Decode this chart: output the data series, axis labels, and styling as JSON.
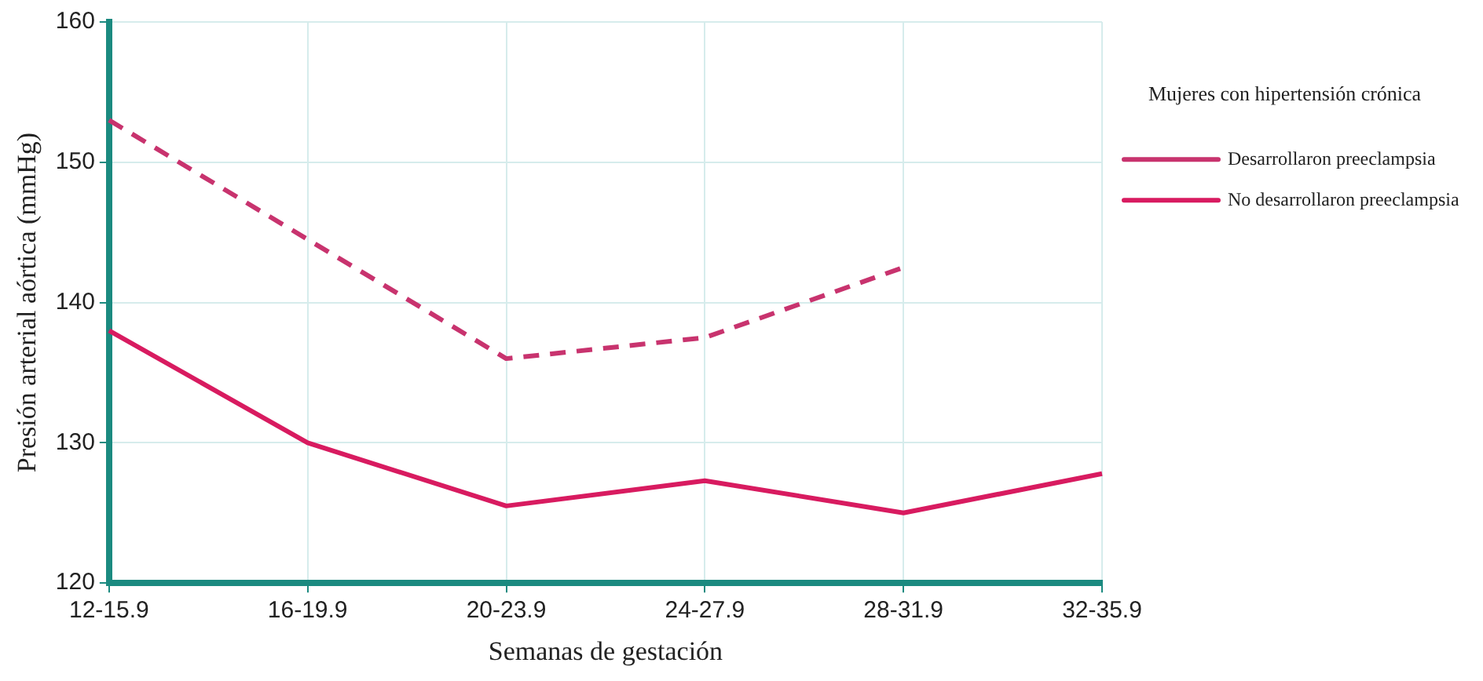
{
  "chart_data": {
    "type": "line",
    "xlabel": "Semanas de gestación",
    "ylabel": "Presión arterial aórtica (mmHg)",
    "legend_title": "Mujeres con hipertensión crónica",
    "categories": [
      "12-15.9",
      "16-19.9",
      "20-23.9",
      "24-27.9",
      "28-31.9",
      "32-35.9"
    ],
    "series": [
      {
        "name": "Desarrollaron preeclampsia",
        "color": "#c8336e",
        "line_style": "dashed",
        "values": [
          153,
          144.5,
          136,
          137.5,
          142.5,
          null
        ]
      },
      {
        "name": "No desarrollaron preeclampsia",
        "color": "#d81b60",
        "line_style": "solid",
        "values": [
          138,
          130,
          125.5,
          127.3,
          125,
          127.8
        ]
      }
    ],
    "ylim": [
      120,
      160
    ],
    "yticks": [
      120,
      130,
      140,
      150,
      160
    ],
    "grid": true,
    "legend": "right",
    "marker": "none"
  }
}
